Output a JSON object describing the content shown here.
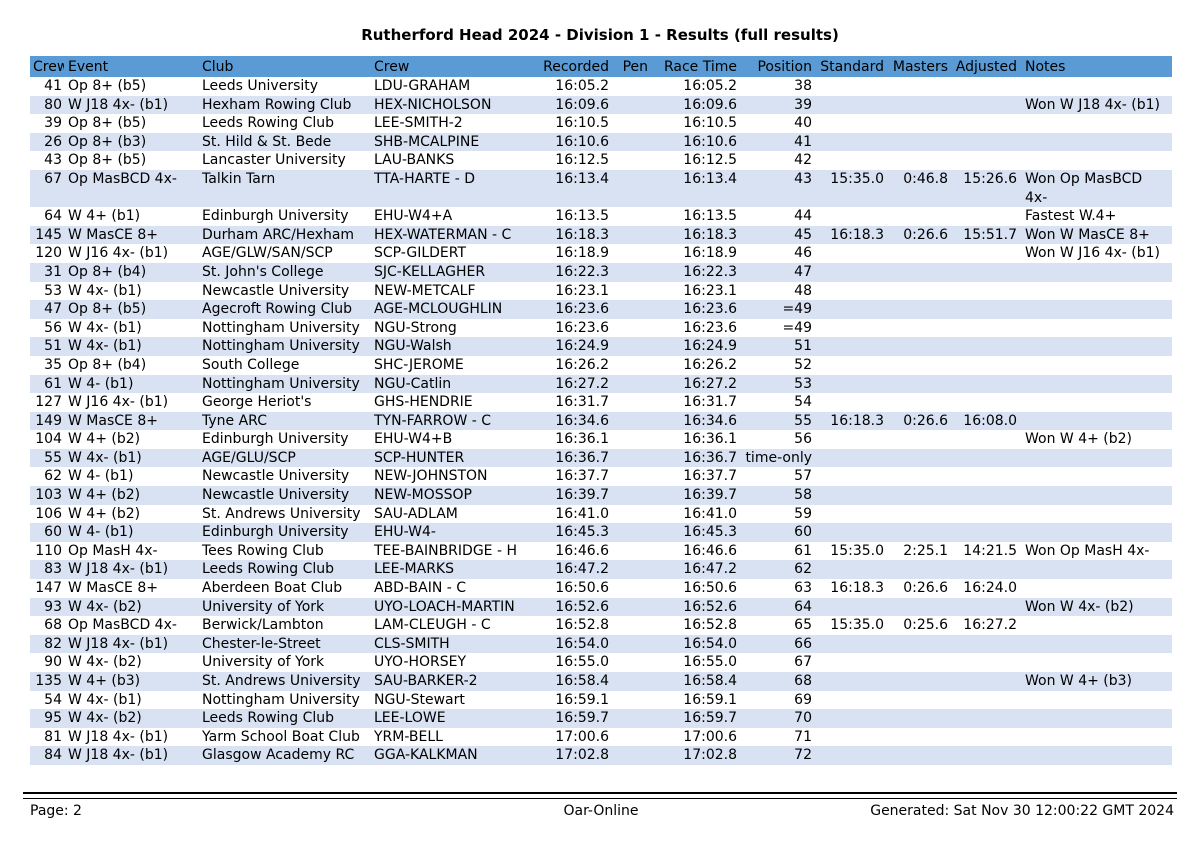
{
  "title": "Rutherford Head 2024 - Division 1 - Results (full results)",
  "colors": {
    "header_bg": "#5b9bd5",
    "row_alt": "#d9e2f3",
    "text": "#000000"
  },
  "table": {
    "columns": [
      "Crew",
      "Event",
      "Club",
      "Crew",
      "Recorded",
      "Pen",
      "Race Time",
      "Position",
      "Standard",
      "Masters",
      "Adjusted",
      "Notes"
    ],
    "rows": [
      [
        "41",
        "Op 8+ (b5)",
        "Leeds University",
        "LDU-GRAHAM",
        "16:05.2",
        "",
        "16:05.2",
        "38",
        "",
        "",
        "",
        ""
      ],
      [
        "80",
        "W J18 4x- (b1)",
        "Hexham Rowing Club",
        "HEX-NICHOLSON",
        "16:09.6",
        "",
        "16:09.6",
        "39",
        "",
        "",
        "",
        "Won W J18 4x- (b1)"
      ],
      [
        "39",
        "Op 8+ (b5)",
        "Leeds Rowing Club",
        "LEE-SMITH-2",
        "16:10.5",
        "",
        "16:10.5",
        "40",
        "",
        "",
        "",
        ""
      ],
      [
        "26",
        "Op 8+ (b3)",
        "St. Hild & St. Bede",
        "SHB-MCALPINE",
        "16:10.6",
        "",
        "16:10.6",
        "41",
        "",
        "",
        "",
        ""
      ],
      [
        "43",
        "Op 8+ (b5)",
        "Lancaster University",
        "LAU-BANKS",
        "16:12.5",
        "",
        "16:12.5",
        "42",
        "",
        "",
        "",
        ""
      ],
      [
        "67",
        "Op MasBCD 4x-",
        "Talkin Tarn",
        "TTA-HARTE - D",
        "16:13.4",
        "",
        "16:13.4",
        "43",
        "15:35.0",
        "0:46.8",
        "15:26.6",
        "Won Op MasBCD 4x-"
      ],
      [
        "64",
        "W 4+ (b1)",
        "Edinburgh University",
        "EHU-W4+A",
        "16:13.5",
        "",
        "16:13.5",
        "44",
        "",
        "",
        "",
        "Fastest W.4+"
      ],
      [
        "145",
        "W MasCE 8+",
        "Durham ARC/Hexham",
        "HEX-WATERMAN - C",
        "16:18.3",
        "",
        "16:18.3",
        "45",
        "16:18.3",
        "0:26.6",
        "15:51.7",
        "Won W MasCE 8+"
      ],
      [
        "120",
        "W J16 4x- (b1)",
        "AGE/GLW/SAN/SCP",
        "SCP-GILDERT",
        "16:18.9",
        "",
        "16:18.9",
        "46",
        "",
        "",
        "",
        "Won W J16 4x- (b1)"
      ],
      [
        "31",
        "Op 8+ (b4)",
        "St. John's College",
        "SJC-KELLAGHER",
        "16:22.3",
        "",
        "16:22.3",
        "47",
        "",
        "",
        "",
        ""
      ],
      [
        "53",
        "W 4x- (b1)",
        "Newcastle University",
        "NEW-METCALF",
        "16:23.1",
        "",
        "16:23.1",
        "48",
        "",
        "",
        "",
        ""
      ],
      [
        "47",
        "Op 8+ (b5)",
        "Agecroft Rowing Club",
        "AGE-MCLOUGHLIN",
        "16:23.6",
        "",
        "16:23.6",
        "=49",
        "",
        "",
        "",
        ""
      ],
      [
        "56",
        "W 4x- (b1)",
        "Nottingham University",
        "NGU-Strong",
        "16:23.6",
        "",
        "16:23.6",
        "=49",
        "",
        "",
        "",
        ""
      ],
      [
        "51",
        "W 4x- (b1)",
        "Nottingham University",
        "NGU-Walsh",
        "16:24.9",
        "",
        "16:24.9",
        "51",
        "",
        "",
        "",
        ""
      ],
      [
        "35",
        "Op 8+ (b4)",
        "South College",
        "SHC-JEROME",
        "16:26.2",
        "",
        "16:26.2",
        "52",
        "",
        "",
        "",
        ""
      ],
      [
        "61",
        "W 4- (b1)",
        "Nottingham University",
        "NGU-Catlin",
        "16:27.2",
        "",
        "16:27.2",
        "53",
        "",
        "",
        "",
        ""
      ],
      [
        "127",
        "W J16 4x- (b1)",
        "George Heriot's",
        "GHS-HENDRIE",
        "16:31.7",
        "",
        "16:31.7",
        "54",
        "",
        "",
        "",
        ""
      ],
      [
        "149",
        "W MasCE 8+",
        "Tyne ARC",
        "TYN-FARROW - C",
        "16:34.6",
        "",
        "16:34.6",
        "55",
        "16:18.3",
        "0:26.6",
        "16:08.0",
        ""
      ],
      [
        "104",
        "W 4+ (b2)",
        "Edinburgh University",
        "EHU-W4+B",
        "16:36.1",
        "",
        "16:36.1",
        "56",
        "",
        "",
        "",
        "Won W 4+ (b2)"
      ],
      [
        "55",
        "W 4x- (b1)",
        "AGE/GLU/SCP",
        "SCP-HUNTER",
        "16:36.7",
        "",
        "16:36.7",
        "time-only",
        "",
        "",
        "",
        ""
      ],
      [
        "62",
        "W 4- (b1)",
        "Newcastle University",
        "NEW-JOHNSTON",
        "16:37.7",
        "",
        "16:37.7",
        "57",
        "",
        "",
        "",
        ""
      ],
      [
        "103",
        "W 4+ (b2)",
        "Newcastle University",
        "NEW-MOSSOP",
        "16:39.7",
        "",
        "16:39.7",
        "58",
        "",
        "",
        "",
        ""
      ],
      [
        "106",
        "W 4+ (b2)",
        "St. Andrews University",
        "SAU-ADLAM",
        "16:41.0",
        "",
        "16:41.0",
        "59",
        "",
        "",
        "",
        ""
      ],
      [
        "60",
        "W 4- (b1)",
        "Edinburgh University",
        "EHU-W4-",
        "16:45.3",
        "",
        "16:45.3",
        "60",
        "",
        "",
        "",
        ""
      ],
      [
        "110",
        "Op MasH 4x-",
        "Tees Rowing Club",
        "TEE-BAINBRIDGE - H",
        "16:46.6",
        "",
        "16:46.6",
        "61",
        "15:35.0",
        "2:25.1",
        "14:21.5",
        "Won Op MasH 4x-"
      ],
      [
        "83",
        "W J18 4x- (b1)",
        "Leeds Rowing Club",
        "LEE-MARKS",
        "16:47.2",
        "",
        "16:47.2",
        "62",
        "",
        "",
        "",
        ""
      ],
      [
        "147",
        "W MasCE 8+",
        "Aberdeen Boat Club",
        "ABD-BAIN - C",
        "16:50.6",
        "",
        "16:50.6",
        "63",
        "16:18.3",
        "0:26.6",
        "16:24.0",
        ""
      ],
      [
        "93",
        "W 4x- (b2)",
        "University of York",
        "UYO-LOACH-MARTIN",
        "16:52.6",
        "",
        "16:52.6",
        "64",
        "",
        "",
        "",
        "Won W 4x- (b2)"
      ],
      [
        "68",
        "Op MasBCD 4x-",
        "Berwick/Lambton",
        "LAM-CLEUGH - C",
        "16:52.8",
        "",
        "16:52.8",
        "65",
        "15:35.0",
        "0:25.6",
        "16:27.2",
        ""
      ],
      [
        "82",
        "W J18 4x- (b1)",
        "Chester-le-Street",
        "CLS-SMITH",
        "16:54.0",
        "",
        "16:54.0",
        "66",
        "",
        "",
        "",
        ""
      ],
      [
        "90",
        "W 4x- (b2)",
        "University of York",
        "UYO-HORSEY",
        "16:55.0",
        "",
        "16:55.0",
        "67",
        "",
        "",
        "",
        ""
      ],
      [
        "135",
        "W 4+ (b3)",
        "St. Andrews University",
        "SAU-BARKER-2",
        "16:58.4",
        "",
        "16:58.4",
        "68",
        "",
        "",
        "",
        "Won W 4+ (b3)"
      ],
      [
        "54",
        "W 4x- (b1)",
        "Nottingham University",
        "NGU-Stewart",
        "16:59.1",
        "",
        "16:59.1",
        "69",
        "",
        "",
        "",
        ""
      ],
      [
        "95",
        "W 4x- (b2)",
        "Leeds Rowing Club",
        "LEE-LOWE",
        "16:59.7",
        "",
        "16:59.7",
        "70",
        "",
        "",
        "",
        ""
      ],
      [
        "81",
        "W J18 4x- (b1)",
        "Yarm School Boat Club",
        "YRM-BELL",
        "17:00.6",
        "",
        "17:00.6",
        "71",
        "",
        "",
        "",
        ""
      ],
      [
        "84",
        "W J18 4x- (b1)",
        "Glasgow Academy RC",
        "GGA-KALKMAN",
        "17:02.8",
        "",
        "17:02.8",
        "72",
        "",
        "",
        "",
        ""
      ]
    ]
  },
  "footer": {
    "page": "Page: 2",
    "center": "Oar-Online",
    "generated": "Generated: Sat Nov 30 12:00:22 GMT 2024"
  }
}
